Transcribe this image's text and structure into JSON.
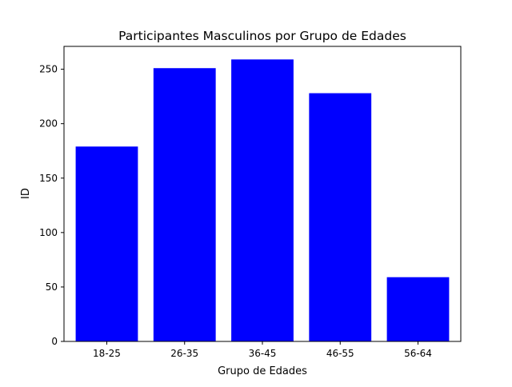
{
  "chart_data": {
    "type": "bar",
    "title": "Participantes Masculinos por Grupo de Edades",
    "xlabel": "Grupo de Edades",
    "ylabel": "ID",
    "categories": [
      "18-25",
      "26-35",
      "36-45",
      "46-55",
      "56-64"
    ],
    "values": [
      179,
      251,
      259,
      228,
      59
    ],
    "ylim": [
      0,
      271
    ],
    "yticks": [
      0,
      50,
      100,
      150,
      200,
      250
    ],
    "bar_color": "#0000ff",
    "grid": false,
    "legend": "none"
  }
}
